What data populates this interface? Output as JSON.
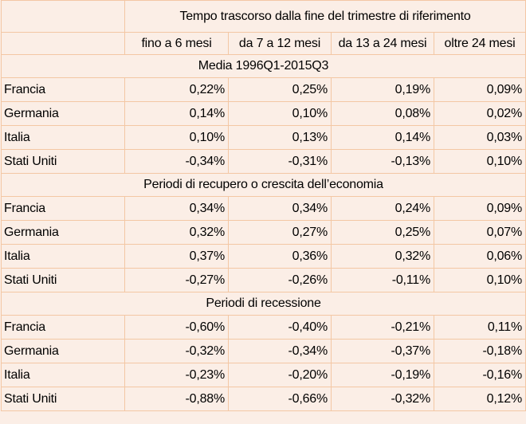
{
  "header": {
    "main": "Tempo trascorso dalla fine del trimestre di riferimento",
    "columns": [
      "fino a 6 mesi",
      "da 7 a 12 mesi",
      "da 13 a 24 mesi",
      "oltre 24 mesi"
    ]
  },
  "sections": [
    {
      "title": "Media 1996Q1-2015Q3",
      "rows": [
        {
          "country": "Francia",
          "values": [
            "0,22%",
            "0,25%",
            "0,19%",
            "0,09%"
          ]
        },
        {
          "country": "Germania",
          "values": [
            "0,14%",
            "0,10%",
            "0,08%",
            "0,02%"
          ]
        },
        {
          "country": "Italia",
          "values": [
            "0,10%",
            "0,13%",
            "0,14%",
            "0,03%"
          ]
        },
        {
          "country": "Stati Uniti",
          "values": [
            "-0,34%",
            "-0,31%",
            "-0,13%",
            "0,10%"
          ]
        }
      ]
    },
    {
      "title": "Periodi di recupero o crescita dell’economia",
      "rows": [
        {
          "country": "Francia",
          "values": [
            "0,34%",
            "0,34%",
            "0,24%",
            "0,09%"
          ]
        },
        {
          "country": "Germania",
          "values": [
            "0,32%",
            "0,27%",
            "0,25%",
            "0,07%"
          ]
        },
        {
          "country": "Italia",
          "values": [
            "0,37%",
            "0,36%",
            "0,32%",
            "0,06%"
          ]
        },
        {
          "country": "Stati Uniti",
          "values": [
            "-0,27%",
            "-0,26%",
            "-0,11%",
            "0,10%"
          ]
        }
      ]
    },
    {
      "title": "Periodi di recessione",
      "rows": [
        {
          "country": "Francia",
          "values": [
            "-0,60%",
            "-0,40%",
            "-0,21%",
            "0,11%"
          ]
        },
        {
          "country": "Germania",
          "values": [
            "-0,32%",
            "-0,34%",
            "-0,37%",
            "-0,18%"
          ]
        },
        {
          "country": "Italia",
          "values": [
            "-0,23%",
            "-0,20%",
            "-0,19%",
            "-0,16%"
          ]
        },
        {
          "country": "Stati Uniti",
          "values": [
            "-0,88%",
            "-0,66%",
            "-0,32%",
            "0,12%"
          ]
        }
      ]
    }
  ]
}
